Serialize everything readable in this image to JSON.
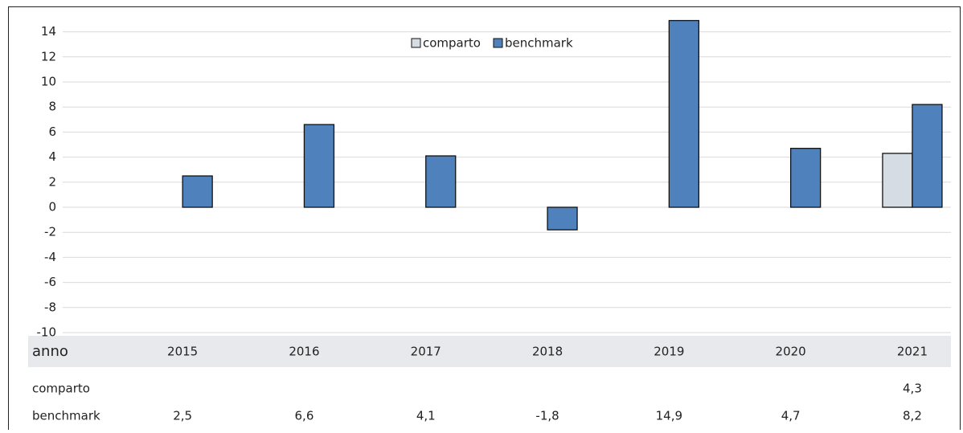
{
  "chart_data": {
    "type": "bar",
    "x_label": "anno",
    "categories": [
      "2015",
      "2016",
      "2017",
      "2018",
      "2019",
      "2020",
      "2021"
    ],
    "series": [
      {
        "name": "comparto",
        "color": "#d6dce4",
        "values": [
          null,
          null,
          null,
          null,
          null,
          null,
          4.3
        ],
        "value_labels": [
          null,
          null,
          null,
          null,
          null,
          null,
          "4,3"
        ]
      },
      {
        "name": "benchmark",
        "color": "#4f81bd",
        "values": [
          2.5,
          6.6,
          4.1,
          -1.8,
          14.9,
          4.7,
          8.2
        ],
        "value_labels": [
          "2,5",
          "6,6",
          "4,1",
          "-1,8",
          "14,9",
          "4,7",
          "8,2"
        ]
      }
    ],
    "ylim": [
      -10,
      16
    ],
    "yticks": [
      -10,
      -8,
      -6,
      -4,
      -2,
      0,
      2,
      4,
      6,
      8,
      10,
      12,
      14
    ],
    "grid": true,
    "legend": "top"
  }
}
